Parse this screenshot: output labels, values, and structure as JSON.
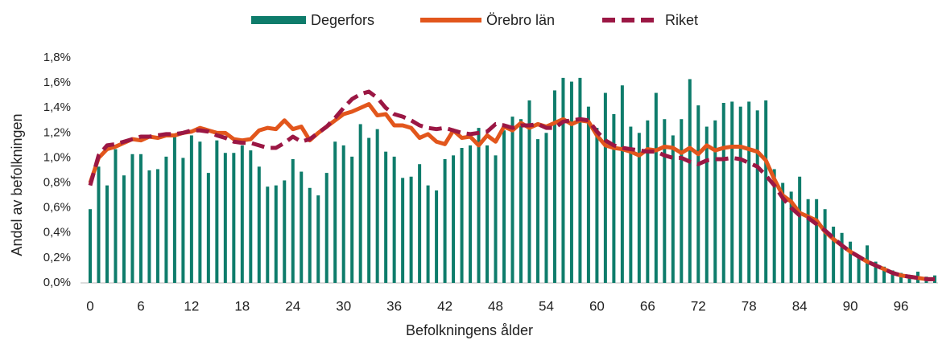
{
  "chart_data": {
    "type": "bar_line",
    "xlabel": "Befolkningens ålder",
    "ylabel": "Andel av befolkningen",
    "categories": [
      "0",
      null,
      null,
      null,
      null,
      null,
      "6",
      null,
      null,
      null,
      null,
      null,
      "12",
      null,
      null,
      null,
      null,
      null,
      "18",
      null,
      null,
      null,
      null,
      null,
      "24",
      null,
      null,
      null,
      null,
      null,
      "30",
      null,
      null,
      null,
      null,
      null,
      "36",
      null,
      null,
      null,
      null,
      null,
      "42",
      null,
      null,
      null,
      null,
      null,
      "48",
      null,
      null,
      null,
      null,
      null,
      "54",
      null,
      null,
      null,
      null,
      null,
      "60",
      null,
      null,
      null,
      null,
      null,
      "66",
      null,
      null,
      null,
      null,
      null,
      "72",
      null,
      null,
      null,
      null,
      null,
      "78",
      null,
      null,
      null,
      null,
      null,
      "84",
      null,
      null,
      null,
      null,
      null,
      "90",
      null,
      null,
      null,
      null,
      null,
      "96",
      null,
      null,
      null,
      null
    ],
    "series": [
      {
        "name": "Degerfors",
        "kind": "bar",
        "color": "#0e7c6b",
        "values": [
          0.59,
          0.93,
          0.78,
          1.07,
          0.86,
          1.03,
          1.03,
          0.9,
          0.91,
          1.01,
          1.18,
          1.0,
          1.18,
          1.13,
          0.88,
          1.14,
          1.04,
          1.04,
          1.1,
          1.06,
          0.93,
          0.77,
          0.78,
          0.82,
          0.99,
          0.89,
          0.76,
          0.7,
          0.88,
          1.13,
          1.1,
          1.01,
          1.27,
          1.16,
          1.23,
          1.05,
          1.01,
          0.84,
          0.85,
          0.95,
          0.78,
          0.74,
          0.99,
          1.02,
          1.08,
          1.1,
          1.24,
          1.1,
          1.02,
          1.22,
          1.33,
          1.31,
          1.46,
          1.15,
          1.2,
          1.54,
          1.64,
          1.61,
          1.64,
          1.41,
          1.24,
          1.52,
          1.35,
          1.58,
          1.25,
          1.2,
          1.3,
          1.52,
          1.31,
          1.18,
          1.31,
          1.63,
          1.42,
          1.25,
          1.3,
          1.44,
          1.45,
          1.41,
          1.45,
          1.38,
          1.46,
          0.91,
          0.8,
          0.73,
          0.85,
          0.67,
          0.67,
          0.59,
          0.45,
          0.4,
          0.33,
          0.22,
          0.3,
          0.17,
          0.13,
          0.1,
          0.08,
          0.06,
          0.09,
          0.05,
          0.06
        ]
      },
      {
        "name": "Örebro län",
        "kind": "line",
        "color": "#e2561c",
        "values": [
          0.8,
          1.0,
          1.07,
          1.09,
          1.12,
          1.15,
          1.14,
          1.17,
          1.16,
          1.18,
          1.18,
          1.2,
          1.21,
          1.24,
          1.22,
          1.2,
          1.2,
          1.15,
          1.14,
          1.15,
          1.22,
          1.24,
          1.23,
          1.3,
          1.23,
          1.25,
          1.14,
          1.2,
          1.25,
          1.3,
          1.35,
          1.37,
          1.4,
          1.43,
          1.34,
          1.35,
          1.26,
          1.26,
          1.24,
          1.16,
          1.19,
          1.13,
          1.11,
          1.22,
          1.16,
          1.17,
          1.1,
          1.18,
          1.13,
          1.25,
          1.22,
          1.28,
          1.24,
          1.27,
          1.25,
          1.28,
          1.31,
          1.27,
          1.3,
          1.29,
          1.18,
          1.1,
          1.08,
          1.07,
          1.05,
          1.02,
          1.07,
          1.06,
          1.09,
          1.08,
          1.04,
          1.08,
          1.03,
          1.1,
          1.06,
          1.08,
          1.09,
          1.09,
          1.07,
          1.05,
          0.98,
          0.83,
          0.7,
          0.65,
          0.56,
          0.53,
          0.5,
          0.41,
          0.35,
          0.3,
          0.25,
          0.21,
          0.17,
          0.14,
          0.11,
          0.08,
          0.06,
          0.05,
          0.04,
          0.03,
          0.03
        ]
      },
      {
        "name": "Riket",
        "kind": "dashed",
        "color": "#9b1744",
        "values": [
          0.78,
          1.02,
          1.1,
          1.11,
          1.13,
          1.15,
          1.17,
          1.17,
          1.18,
          1.19,
          1.19,
          1.2,
          1.22,
          1.22,
          1.21,
          1.18,
          1.16,
          1.13,
          1.12,
          1.12,
          1.1,
          1.08,
          1.08,
          1.12,
          1.17,
          1.13,
          1.15,
          1.2,
          1.25,
          1.32,
          1.4,
          1.47,
          1.51,
          1.53,
          1.48,
          1.4,
          1.35,
          1.33,
          1.3,
          1.26,
          1.24,
          1.23,
          1.24,
          1.22,
          1.2,
          1.19,
          1.2,
          1.21,
          1.27,
          1.26,
          1.24,
          1.26,
          1.26,
          1.27,
          1.24,
          1.24,
          1.29,
          1.3,
          1.31,
          1.3,
          1.21,
          1.14,
          1.1,
          1.08,
          1.07,
          1.06,
          1.05,
          1.05,
          1.02,
          1.0,
          1.0,
          0.97,
          0.95,
          0.98,
          0.99,
          0.99,
          1.0,
          0.99,
          0.96,
          0.93,
          0.86,
          0.78,
          0.68,
          0.6,
          0.54,
          0.52,
          0.47,
          0.42,
          0.36,
          0.3,
          0.25,
          0.21,
          0.17,
          0.14,
          0.11,
          0.08,
          0.06,
          0.05,
          0.04,
          0.03,
          0.03
        ]
      }
    ],
    "ylim": [
      0,
      1.8
    ],
    "yticks": [
      {
        "value": 0,
        "label": "0,0%"
      },
      {
        "value": 0.2,
        "label": "0,2%"
      },
      {
        "value": 0.4,
        "label": "0,4%"
      },
      {
        "value": 0.6,
        "label": "0,6%"
      },
      {
        "value": 0.8,
        "label": "0,8%"
      },
      {
        "value": 1.0,
        "label": "1,0%"
      },
      {
        "value": 1.2,
        "label": "1,2%"
      },
      {
        "value": 1.4,
        "label": "1,4%"
      },
      {
        "value": 1.6,
        "label": "1,6%"
      },
      {
        "value": 1.8,
        "label": "1,8%"
      }
    ],
    "legend": "top"
  }
}
